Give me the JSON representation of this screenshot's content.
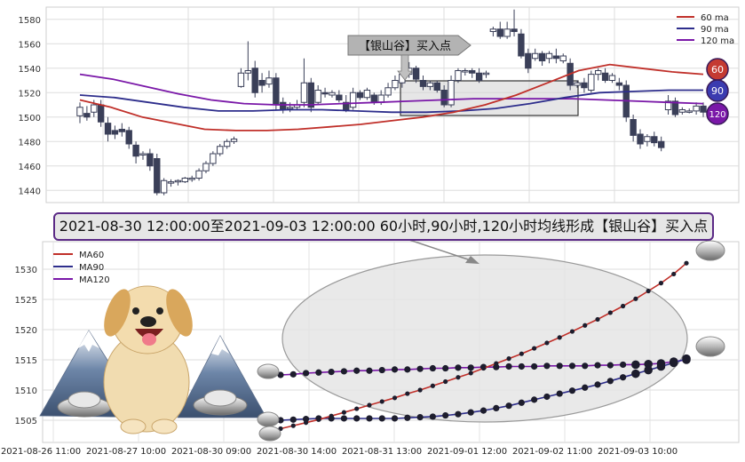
{
  "banner": "2021-08-30 12:00:00至2021-09-03 12:00:00 60小时,90小时,120小时均线形成【银山谷】买入点",
  "box_label": "【银山谷】买入点",
  "badges": [
    "60",
    "90",
    "120"
  ],
  "colors": {
    "ma60": "#c0302a",
    "ma90": "#2e2e8c",
    "ma120": "#7a18a8",
    "badge60": "#c43a32",
    "badge90": "#3b3bb0",
    "badge120": "#7a18a8"
  },
  "top_chart": {
    "type": "candlestick",
    "ylim": [
      1430,
      1590
    ],
    "yticks": [
      1440,
      1460,
      1480,
      1500,
      1520,
      1540,
      1560,
      1580
    ],
    "legend": [
      "60 ma",
      "90 ma",
      "120 ma"
    ],
    "candles": [
      [
        1501,
        1508,
        1495,
        1512
      ],
      [
        1503,
        1500,
        1497,
        1509
      ],
      [
        1504,
        1510,
        1500,
        1514
      ],
      [
        1510,
        1496,
        1492,
        1514
      ],
      [
        1495,
        1486,
        1480,
        1500
      ],
      [
        1489,
        1486,
        1482,
        1493
      ],
      [
        1490,
        1488,
        1484,
        1495
      ],
      [
        1489,
        1478,
        1474,
        1492
      ],
      [
        1477,
        1468,
        1462,
        1480
      ],
      [
        1469,
        1470,
        1465,
        1472
      ],
      [
        1470,
        1460,
        1456,
        1474
      ],
      [
        1466,
        1438,
        1436,
        1470
      ],
      [
        1438,
        1448,
        1436,
        1450
      ],
      [
        1446,
        1447,
        1443,
        1449
      ],
      [
        1447,
        1448,
        1444,
        1449
      ],
      [
        1447,
        1450,
        1446,
        1451
      ],
      [
        1449,
        1450,
        1447,
        1452
      ],
      [
        1450,
        1456,
        1448,
        1458
      ],
      [
        1456,
        1462,
        1454,
        1464
      ],
      [
        1462,
        1470,
        1460,
        1472
      ],
      [
        1470,
        1476,
        1468,
        1478
      ],
      [
        1476,
        1480,
        1474,
        1482
      ],
      [
        1480,
        1482,
        1478,
        1484
      ],
      [
        1525,
        1536,
        1524,
        1540
      ],
      [
        1536,
        1538,
        1530,
        1562
      ],
      [
        1540,
        1520,
        1516,
        1546
      ],
      [
        1530,
        1526,
        1520,
        1536
      ],
      [
        1527,
        1532,
        1524,
        1538
      ],
      [
        1532,
        1510,
        1506,
        1536
      ],
      [
        1512,
        1506,
        1503,
        1516
      ],
      [
        1507,
        1508,
        1504,
        1512
      ],
      [
        1508,
        1510,
        1506,
        1514
      ],
      [
        1512,
        1528,
        1508,
        1548
      ],
      [
        1528,
        1508,
        1504,
        1532
      ],
      [
        1512,
        1522,
        1510,
        1526
      ],
      [
        1520,
        1519,
        1516,
        1524
      ],
      [
        1518,
        1520,
        1516,
        1522
      ],
      [
        1518,
        1514,
        1512,
        1522
      ],
      [
        1512,
        1506,
        1504,
        1518
      ],
      [
        1508,
        1520,
        1506,
        1524
      ],
      [
        1520,
        1516,
        1514,
        1522
      ],
      [
        1516,
        1522,
        1514,
        1524
      ],
      [
        1518,
        1512,
        1510,
        1520
      ],
      [
        1512,
        1518,
        1510,
        1522
      ],
      [
        1518,
        1524,
        1516,
        1528
      ],
      [
        1524,
        1530,
        1522,
        1534
      ],
      [
        1528,
        1535,
        1524,
        1538
      ],
      [
        1535,
        1540,
        1532,
        1545
      ],
      [
        1540,
        1531,
        1528,
        1542
      ],
      [
        1530,
        1525,
        1522,
        1534
      ],
      [
        1525,
        1528,
        1522,
        1530
      ],
      [
        1528,
        1522,
        1520,
        1530
      ],
      [
        1522,
        1510,
        1508,
        1526
      ],
      [
        1510,
        1530,
        1508,
        1534
      ],
      [
        1530,
        1538,
        1528,
        1540
      ],
      [
        1538,
        1538,
        1534,
        1540
      ],
      [
        1538,
        1536,
        1532,
        1540
      ],
      [
        1536,
        1530,
        1528,
        1540
      ],
      [
        1535,
        1536,
        1532,
        1538
      ],
      [
        1570,
        1572,
        1566,
        1574
      ],
      [
        1572,
        1566,
        1564,
        1578
      ],
      [
        1566,
        1572,
        1564,
        1578
      ],
      [
        1572,
        1570,
        1566,
        1588
      ],
      [
        1568,
        1550,
        1548,
        1572
      ],
      [
        1552,
        1540,
        1536,
        1556
      ],
      [
        1548,
        1552,
        1546,
        1556
      ],
      [
        1552,
        1546,
        1542,
        1554
      ],
      [
        1548,
        1552,
        1544,
        1554
      ],
      [
        1550,
        1548,
        1544,
        1556
      ],
      [
        1546,
        1550,
        1544,
        1552
      ],
      [
        1544,
        1526,
        1522,
        1548
      ],
      [
        1526,
        1528,
        1524,
        1530
      ],
      [
        1528,
        1524,
        1520,
        1532
      ],
      [
        1522,
        1535,
        1520,
        1538
      ],
      [
        1535,
        1538,
        1530,
        1540
      ],
      [
        1536,
        1530,
        1528,
        1540
      ],
      [
        1530,
        1534,
        1528,
        1536
      ],
      [
        1528,
        1526,
        1522,
        1532
      ],
      [
        1526,
        1500,
        1496,
        1530
      ],
      [
        1498,
        1485,
        1480,
        1502
      ],
      [
        1486,
        1478,
        1474,
        1490
      ],
      [
        1480,
        1484,
        1476,
        1486
      ],
      [
        1484,
        1479,
        1476,
        1488
      ],
      [
        1480,
        1475,
        1472,
        1484
      ],
      [
        1506,
        1513,
        1502,
        1518
      ],
      [
        1513,
        1502,
        1500,
        1516
      ],
      [
        1504,
        1506,
        1502,
        1508
      ],
      [
        1505,
        1505,
        1503,
        1507
      ],
      [
        1505,
        1509,
        1502,
        1512
      ],
      [
        1509,
        1504,
        1500,
        1512
      ]
    ],
    "ma60": [
      1514,
      1508,
      1500,
      1495,
      1490,
      1489,
      1489,
      1490,
      1492,
      1494,
      1497,
      1500,
      1504,
      1510,
      1518,
      1528,
      1538,
      1543,
      1540,
      1537,
      1535
    ],
    "ma90": [
      1518,
      1516,
      1512,
      1508,
      1505,
      1505,
      1506,
      1506,
      1505,
      1504,
      1504,
      1505,
      1507,
      1511,
      1516,
      1520,
      1521,
      1522,
      1522
    ],
    "ma120": [
      1535,
      1531,
      1525,
      1519,
      1514,
      1511,
      1510,
      1510,
      1511,
      1512,
      1513,
      1514,
      1515,
      1515,
      1515,
      1515,
      1514,
      1513,
      1512,
      1511
    ]
  },
  "bottom_chart": {
    "type": "line",
    "ylim": [
      1502.5,
      1532.5
    ],
    "yticks": [
      1505,
      1510,
      1515,
      1520,
      1525,
      1530
    ],
    "xticklabels": [
      "2021-08-26 11:00",
      "2021-08-27 10:00",
      "2021-08-30 09:00",
      "2021-08-30 14:00",
      "2021-08-31 13:00",
      "2021-09-01 12:00",
      "2021-09-02 11:00",
      "2021-09-03 10:00"
    ],
    "legend": [
      "MA60",
      "MA90",
      "MA120"
    ],
    "series": [
      {
        "name": "MA60",
        "color": "#c0302a",
        "values": [
          1503.6,
          1504.1,
          1504.6,
          1505.1,
          1505.7,
          1506.3,
          1506.9,
          1507.5,
          1508.1,
          1508.7,
          1509.4,
          1510.0,
          1510.7,
          1511.4,
          1512.1,
          1512.8,
          1513.6,
          1514.4,
          1515.2,
          1516.0,
          1516.9,
          1517.8,
          1518.7,
          1519.7,
          1520.7,
          1521.7,
          1522.8,
          1523.9,
          1525.1,
          1526.4,
          1527.7,
          1529.2,
          1531.0
        ]
      },
      {
        "name": "MA90",
        "color": "#2e2e8c",
        "values": [
          1505.0,
          1505.1,
          1505.2,
          1505.3,
          1505.3,
          1505.3,
          1505.3,
          1505.3,
          1505.3,
          1505.3,
          1505.4,
          1505.5,
          1505.6,
          1505.8,
          1506.0,
          1506.3,
          1506.6,
          1507.0,
          1507.4,
          1507.9,
          1508.4,
          1508.9,
          1509.4,
          1509.9,
          1510.4,
          1510.9,
          1511.5,
          1512.1,
          1512.7,
          1513.3,
          1513.9,
          1514.5,
          1515.2
        ]
      },
      {
        "name": "MA120",
        "color": "#7a18a8",
        "values": [
          1512.5,
          1512.6,
          1512.8,
          1512.9,
          1513.0,
          1513.1,
          1513.2,
          1513.2,
          1513.3,
          1513.4,
          1513.4,
          1513.5,
          1513.6,
          1513.6,
          1513.7,
          1513.7,
          1513.8,
          1513.8,
          1513.9,
          1513.9,
          1513.9,
          1514.0,
          1514.0,
          1514.0,
          1514.0,
          1514.1,
          1514.1,
          1514.2,
          1514.2,
          1514.3,
          1514.4,
          1514.7,
          1515.0
        ]
      }
    ]
  }
}
